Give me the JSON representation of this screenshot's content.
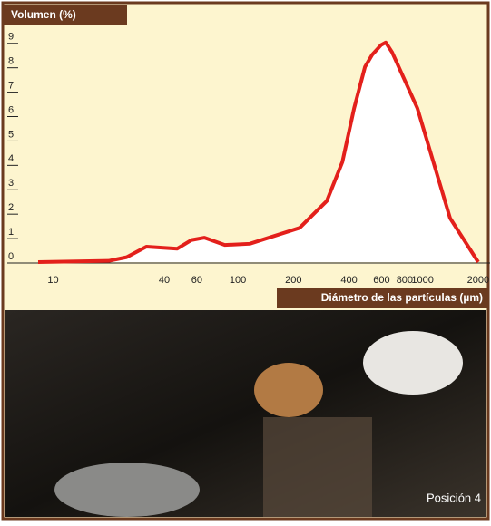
{
  "chart_data": {
    "type": "line",
    "ylabel": "Volumen (%)",
    "xlabel": "Diámetro de las partículas (µm)",
    "x": [
      8.3,
      20,
      25,
      32,
      47,
      56,
      66,
      85,
      116,
      216,
      303,
      368,
      426,
      488,
      534,
      597,
      632,
      684,
      938,
      1409,
      2000
    ],
    "series": [
      {
        "name": null,
        "color": "#e3201b",
        "values": [
          0,
          0.05,
          0.2,
          0.63,
          0.55,
          0.9,
          1.0,
          0.7,
          0.75,
          1.4,
          2.5,
          4.1,
          6.3,
          8.0,
          8.5,
          8.9,
          9.0,
          8.6,
          6.3,
          1.8,
          0
        ]
      }
    ],
    "xscale": "log",
    "xlim": [
      8.3,
      2320
    ],
    "xticks": [
      10,
      40,
      60,
      100,
      200,
      400,
      600,
      800,
      1000,
      2000
    ],
    "ylim": [
      0,
      9.4
    ],
    "yticks": [
      0,
      1,
      2,
      3,
      4,
      5,
      6,
      7,
      8,
      9
    ],
    "fill": "#ffffff"
  },
  "photo": {
    "caption": "Posición 4"
  }
}
